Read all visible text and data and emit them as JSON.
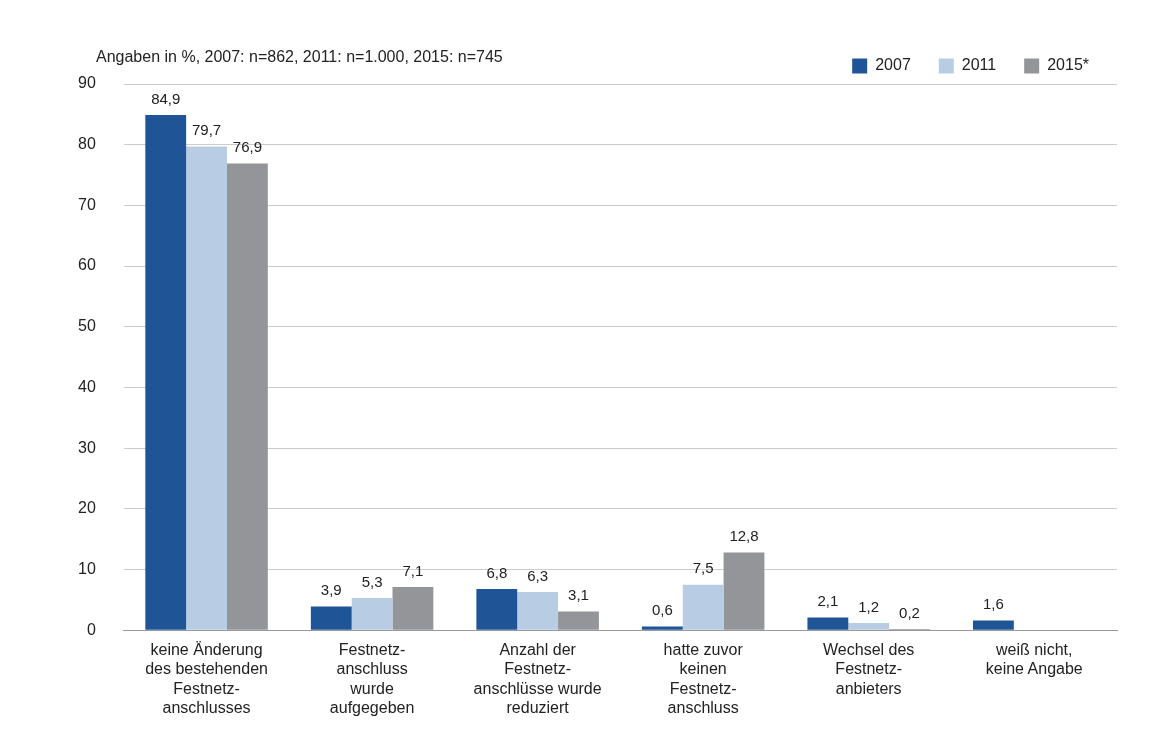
{
  "chart_data": {
    "type": "bar",
    "subtitle": "Angaben in %, 2007: n=862, 2011: n=1.000, 2015: n=745",
    "categories": [
      "keine Änderung\ndes bestehenden\nFestnetz-\nanschlusses",
      "Festnetz-\nanschluss\nwurde\naufgegeben",
      "Anzahl der\nFestnetz-\nanschlüsse wurde\nreduziert",
      "hatte zuvor\nkeinen\nFestnetz-\nanschluss",
      "Wechsel des\nFestnetz-\nanbieters",
      "weiß nicht,\nkeine Angabe"
    ],
    "series": [
      {
        "name": "2007",
        "color": "#1f5596",
        "values": [
          84.9,
          3.9,
          6.8,
          0.6,
          2.1,
          1.6
        ],
        "value_labels": [
          "84,9",
          "3,9",
          "6,8",
          "0,6",
          "2,1",
          "1,6"
        ]
      },
      {
        "name": "2011",
        "color": "#b8cde3",
        "values": [
          79.7,
          5.3,
          6.3,
          7.5,
          1.2,
          null
        ],
        "value_labels": [
          "79,7",
          "5,3",
          "6,3",
          "7,5",
          "1,2",
          null
        ]
      },
      {
        "name": "2015*",
        "color": "#939598",
        "values": [
          76.9,
          7.1,
          3.1,
          12.8,
          0.2,
          null
        ],
        "value_labels": [
          "76,9",
          "7,1",
          "3,1",
          "12,8",
          "0,2",
          null
        ]
      }
    ],
    "ylim": [
      0,
      90
    ],
    "yticks": [
      0,
      10,
      20,
      30,
      40,
      50,
      60,
      70,
      80,
      90
    ],
    "grid": "y",
    "legend": "top right"
  }
}
